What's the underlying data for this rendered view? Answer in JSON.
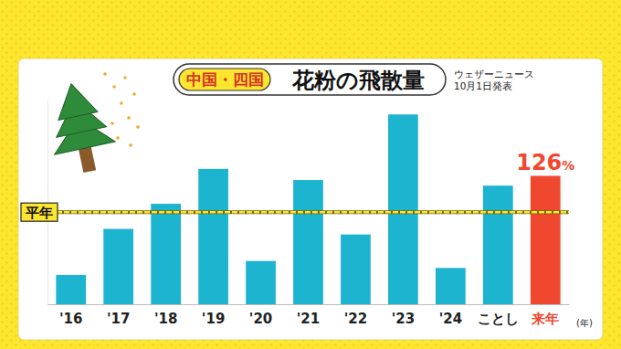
{
  "chart_data": {
    "type": "bar",
    "subtitle": "中国・四国",
    "title": "花粉の飛散量",
    "annotations": [
      "ウェザーニュース",
      "10月1日発表"
    ],
    "x_label": "(年)",
    "categories": [
      "'16",
      "'17",
      "'18",
      "'19",
      "'20",
      "'21",
      "'22",
      "'23",
      "'24",
      "ことし",
      "来年"
    ],
    "values": [
      55,
      88,
      106,
      131,
      65,
      123,
      84,
      170,
      60,
      119,
      126
    ],
    "value_labels": [
      null,
      null,
      null,
      null,
      null,
      null,
      null,
      null,
      null,
      null,
      "126%"
    ],
    "colors": [
      "#1db4cf",
      "#1db4cf",
      "#1db4cf",
      "#1db4cf",
      "#1db4cf",
      "#1db4cf",
      "#1db4cf",
      "#1db4cf",
      "#1db4cf",
      "#1db4cf",
      "#f0472f"
    ],
    "reference_line": {
      "value": 100,
      "label": "平年"
    },
    "ylim": [
      34,
      180
    ],
    "yticks": [],
    "tick_labels": "x",
    "data_labels": true,
    "grid": false
  }
}
